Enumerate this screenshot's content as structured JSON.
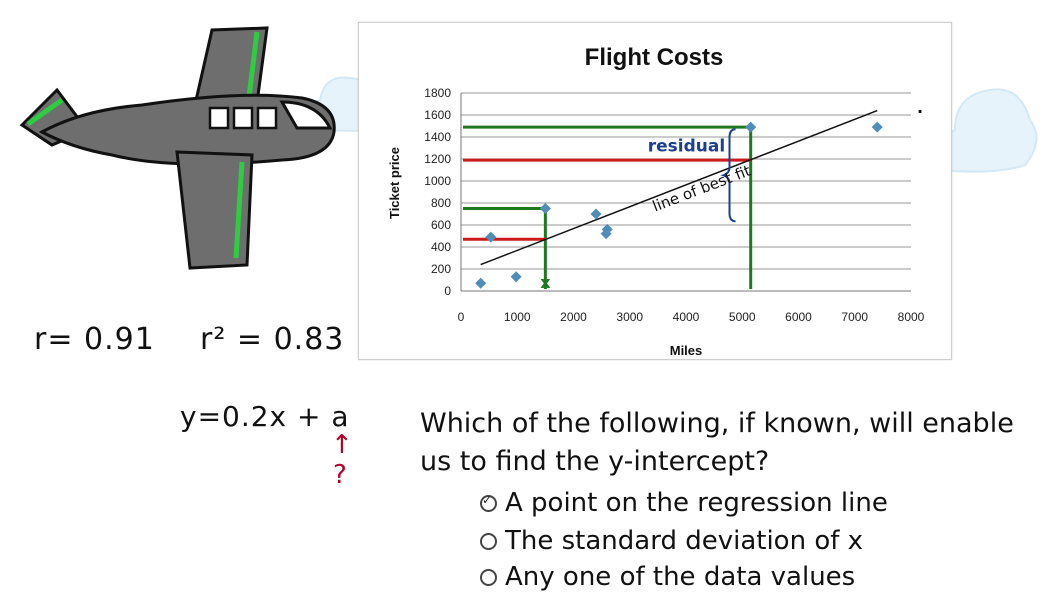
{
  "chart_data": {
    "type": "scatter",
    "title": "Flight Costs",
    "xlabel": "Miles",
    "ylabel": "Ticket price",
    "xlim": [
      0,
      8000
    ],
    "ylim": [
      0,
      1800
    ],
    "x_ticks": [
      "0",
      "1000",
      "2000",
      "3000",
      "4000",
      "5000",
      "6000",
      "7000",
      "8000"
    ],
    "y_ticks": [
      "0",
      "200",
      "400",
      "600",
      "800",
      "1000",
      "1200",
      "1400",
      "1600",
      "1800"
    ],
    "points": [
      {
        "x": 350,
        "y": 70
      },
      {
        "x": 530,
        "y": 490
      },
      {
        "x": 980,
        "y": 130
      },
      {
        "x": 1500,
        "y": 750
      },
      {
        "x": 2400,
        "y": 700
      },
      {
        "x": 2580,
        "y": 520
      },
      {
        "x": 2600,
        "y": 560
      },
      {
        "x": 5150,
        "y": 1490
      },
      {
        "x": 7400,
        "y": 1490
      }
    ],
    "best_fit": {
      "x": [
        350,
        7400
      ],
      "y": [
        240,
        1640
      ]
    },
    "grid": true,
    "annotations": {
      "residual": "residual",
      "best_fit_label": "line of best fit",
      "x_mark": "x",
      "dot": "."
    },
    "guides": [
      {
        "color": "#1f7a1f",
        "x": 1500,
        "y": 750
      },
      {
        "color": "#cc1a1a",
        "x": 1500,
        "y": 470
      },
      {
        "color": "#1f7a1f",
        "x": 5150,
        "y": 1490
      },
      {
        "color": "#cc1a1a",
        "x": 5150,
        "y": 1190
      }
    ]
  },
  "notes": {
    "r": "r= 0.91",
    "r2": "r² = 0.83",
    "equation": "y=0.2x + a",
    "arrow": "↑",
    "question_mark": "?"
  },
  "quiz": {
    "question_line1": "Which of the following, if known, will enable",
    "question_line2": "us to find the y-intercept?",
    "options": [
      {
        "label": "A point on the regression line",
        "checked": true
      },
      {
        "label": "The standard deviation of x",
        "checked": false
      },
      {
        "label": "Any one of the data values",
        "checked": false
      }
    ]
  },
  "colors": {
    "plane_body": "#6e6e6e",
    "plane_stripe": "#2ecc40",
    "point": "#4f8db8",
    "guide_green": "#1f7a1f",
    "guide_red": "#cc1a1a",
    "annotation_blue": "#1c3f8f"
  }
}
